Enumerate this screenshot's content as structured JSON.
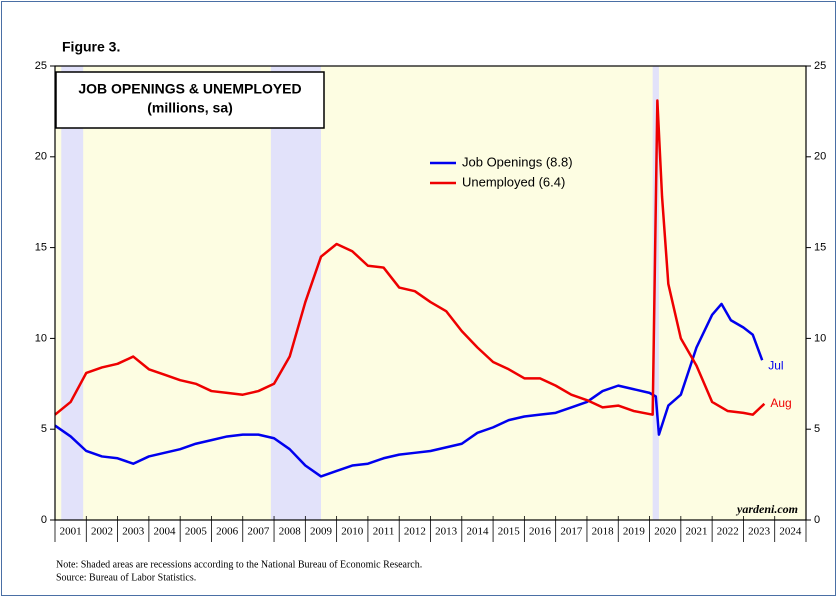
{
  "chart_data": {
    "type": "line",
    "figure_label": "Figure 3.",
    "title": "JOB OPENINGS & UNEMPLOYED",
    "subtitle": "(millions, sa)",
    "watermark": "yardeni.com",
    "notes": [
      "Note: Shaded areas are recessions according to the National Bureau of Economic Research.",
      "Source: Bureau of Labor Statistics."
    ],
    "xlim": [
      2001,
      2025
    ],
    "xticks": [
      2001,
      2002,
      2003,
      2004,
      2005,
      2006,
      2007,
      2008,
      2009,
      2010,
      2011,
      2012,
      2013,
      2014,
      2015,
      2016,
      2017,
      2018,
      2019,
      2020,
      2021,
      2022,
      2023,
      2024,
      2025
    ],
    "year_labels": [
      "2001",
      "2002",
      "2003",
      "2004",
      "2005",
      "2006",
      "2007",
      "2008",
      "2009",
      "2010",
      "2011",
      "2012",
      "2013",
      "2014",
      "2015",
      "2016",
      "2017",
      "2018",
      "2019",
      "2020",
      "2021",
      "2022",
      "2023",
      "2024"
    ],
    "ylim": [
      0,
      25
    ],
    "yticks": [
      0,
      5,
      10,
      15,
      20,
      25
    ],
    "background_color": "#fdfde2",
    "recession_color": "#e2e2fa",
    "recessions": [
      [
        2001.2,
        2001.9
      ],
      [
        2007.9,
        2009.5
      ],
      [
        2020.1,
        2020.3
      ]
    ],
    "series": [
      {
        "name": "Job Openings (8.8)",
        "color": "#0000ee",
        "end_label": "Jul",
        "x": [
          2001.0,
          2001.5,
          2002,
          2002.5,
          2003,
          2003.5,
          2004,
          2004.5,
          2005,
          2005.5,
          2006,
          2006.5,
          2007,
          2007.5,
          2008,
          2008.5,
          2009,
          2009.5,
          2010,
          2010.5,
          2011,
          2011.5,
          2012,
          2012.5,
          2013,
          2013.5,
          2014,
          2014.5,
          2015,
          2015.5,
          2016,
          2016.5,
          2017,
          2017.5,
          2018,
          2018.5,
          2019,
          2019.5,
          2020.0,
          2020.2,
          2020.3,
          2020.6,
          2021,
          2021.5,
          2022,
          2022.3,
          2022.6,
          2023,
          2023.3,
          2023.6
        ],
        "values": [
          5.2,
          4.6,
          3.8,
          3.5,
          3.4,
          3.1,
          3.5,
          3.7,
          3.9,
          4.2,
          4.4,
          4.6,
          4.7,
          4.7,
          4.5,
          3.9,
          3.0,
          2.4,
          2.7,
          3.0,
          3.1,
          3.4,
          3.6,
          3.7,
          3.8,
          4.0,
          4.2,
          4.8,
          5.1,
          5.5,
          5.7,
          5.8,
          5.9,
          6.2,
          6.5,
          7.1,
          7.4,
          7.2,
          7.0,
          6.8,
          4.7,
          6.3,
          6.9,
          9.5,
          11.3,
          11.9,
          11.0,
          10.6,
          10.2,
          8.8
        ]
      },
      {
        "name": "Unemployed (6.4)",
        "color": "#ee0000",
        "end_label": "Aug",
        "x": [
          2001.0,
          2001.5,
          2002,
          2002.5,
          2003,
          2003.5,
          2004,
          2004.5,
          2005,
          2005.5,
          2006,
          2006.5,
          2007,
          2007.5,
          2008,
          2008.5,
          2009,
          2009.5,
          2010,
          2010.5,
          2011,
          2011.5,
          2012,
          2012.5,
          2013,
          2013.5,
          2014,
          2014.5,
          2015,
          2015.5,
          2016,
          2016.5,
          2017,
          2017.5,
          2018,
          2018.5,
          2019,
          2019.5,
          2020.1,
          2020.25,
          2020.4,
          2020.6,
          2021,
          2021.5,
          2022,
          2022.5,
          2023,
          2023.3,
          2023.67
        ],
        "values": [
          5.8,
          6.5,
          8.1,
          8.4,
          8.6,
          9.0,
          8.3,
          8.0,
          7.7,
          7.5,
          7.1,
          7.0,
          6.9,
          7.1,
          7.5,
          9.0,
          12.0,
          14.5,
          15.2,
          14.8,
          14.0,
          13.9,
          12.8,
          12.6,
          12.0,
          11.5,
          10.4,
          9.5,
          8.7,
          8.3,
          7.8,
          7.8,
          7.4,
          6.9,
          6.6,
          6.2,
          6.3,
          6.0,
          5.8,
          23.1,
          17.8,
          13.0,
          10.0,
          8.5,
          6.5,
          6.0,
          5.9,
          5.8,
          6.4
        ]
      }
    ]
  }
}
